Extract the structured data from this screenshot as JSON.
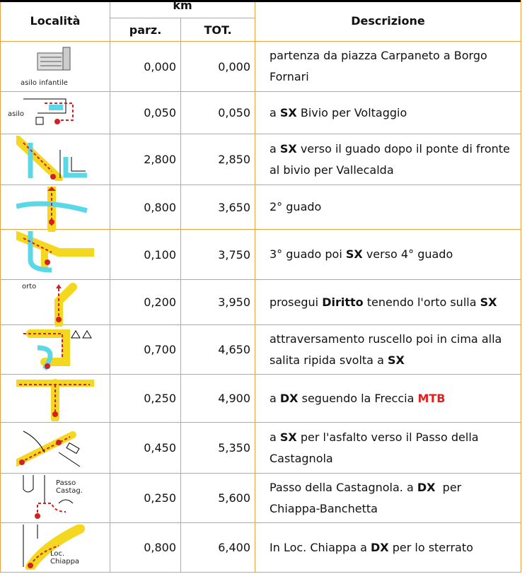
{
  "header": {
    "locality": "Località",
    "km": "km",
    "partial": "parz.",
    "total": "TOT.",
    "description": "Descrizione"
  },
  "rows": [
    {
      "icon_label": "asilo infantile",
      "partial": "0,000",
      "total": "0,000",
      "description": [
        {
          "text": "partenza da piazza Carpaneto a Borgo Fornari"
        }
      ]
    },
    {
      "icon_label": "asilo",
      "partial": "0,050",
      "total": "0,050",
      "description": [
        {
          "text": "a "
        },
        {
          "text": "SX",
          "style": "bold"
        },
        {
          "text": " Bivio per Voltaggio"
        }
      ]
    },
    {
      "partial": "2,800",
      "total": "2,850",
      "description": [
        {
          "text": "a "
        },
        {
          "text": "SX",
          "style": "bold"
        },
        {
          "text": " verso il guado dopo il ponte di fronte al bivio per Vallecalda"
        }
      ]
    },
    {
      "partial": "0,800",
      "total": "3,650",
      "description": [
        {
          "text": "2° guado"
        }
      ]
    },
    {
      "partial": "0,100",
      "total": "3,750",
      "description": [
        {
          "text": "3° guado poi "
        },
        {
          "text": "SX",
          "style": "bold"
        },
        {
          "text": " verso 4° guado"
        }
      ]
    },
    {
      "icon_label": "orto",
      "partial": "0,200",
      "total": "3,950",
      "description": [
        {
          "text": "prosegui "
        },
        {
          "text": "Diritto",
          "style": "bold"
        },
        {
          "text": " tenendo l'orto sulla "
        },
        {
          "text": "SX",
          "style": "bold"
        }
      ]
    },
    {
      "partial": "0,700",
      "total": "4,650",
      "description": [
        {
          "text": "attraversamento ruscello poi in cima alla salita ripida svolta a "
        },
        {
          "text": "SX",
          "style": "bold"
        }
      ]
    },
    {
      "partial": "0,250",
      "total": "4,900",
      "description": [
        {
          "text": "a "
        },
        {
          "text": "DX",
          "style": "bold"
        },
        {
          "text": " seguendo la Freccia "
        },
        {
          "text": "MTB",
          "style": "bold-red"
        }
      ]
    },
    {
      "partial": "0,450",
      "total": "5,350",
      "description": [
        {
          "text": "a "
        },
        {
          "text": "SX",
          "style": "bold"
        },
        {
          "text": " per l'asfalto verso il Passo della Castagnola"
        }
      ]
    },
    {
      "icon_label": "Passo Castag.",
      "partial": "0,250",
      "total": "5,600",
      "description": [
        {
          "text": "Passo della Castagnola. a "
        },
        {
          "text": "DX",
          "style": "bold"
        },
        {
          "text": "  per Chiappa-Banchetta"
        }
      ]
    },
    {
      "icon_label": "Loc. Chiappa",
      "partial": "0,800",
      "total": "6,400",
      "description": [
        {
          "text": "In Loc. Chiappa a "
        },
        {
          "text": "DX",
          "style": "bold"
        },
        {
          "text": " per lo sterrato"
        }
      ]
    }
  ]
}
